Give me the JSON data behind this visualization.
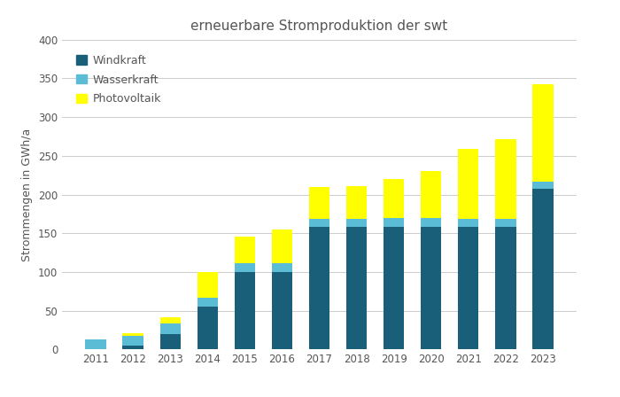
{
  "years": [
    2011,
    2012,
    2013,
    2014,
    2015,
    2016,
    2017,
    2018,
    2019,
    2020,
    2021,
    2022,
    2023
  ],
  "windkraft": [
    0,
    5,
    20,
    55,
    100,
    100,
    158,
    158,
    158,
    158,
    158,
    158,
    207
  ],
  "wasserkraft": [
    13,
    13,
    13,
    12,
    11,
    11,
    10,
    10,
    12,
    12,
    11,
    11,
    10
  ],
  "photovoltaik": [
    0,
    3,
    8,
    33,
    35,
    44,
    42,
    43,
    50,
    60,
    90,
    102,
    125
  ],
  "color_wind": "#1a5f7a",
  "color_wasser": "#5bbcd6",
  "color_photo": "#ffff00",
  "title": "erneuerbare Stromproduktion der swt",
  "ylabel": "Strommengen in GWh/a",
  "ylim": [
    0,
    400
  ],
  "yticks": [
    0,
    50,
    100,
    150,
    200,
    250,
    300,
    350,
    400
  ],
  "legend_labels": [
    "Windkraft",
    "Wasserkraft",
    "Photovoltaik"
  ],
  "title_fontsize": 11,
  "label_fontsize": 9,
  "tick_fontsize": 8.5,
  "background_color": "#ffffff",
  "grid_color": "#cccccc"
}
